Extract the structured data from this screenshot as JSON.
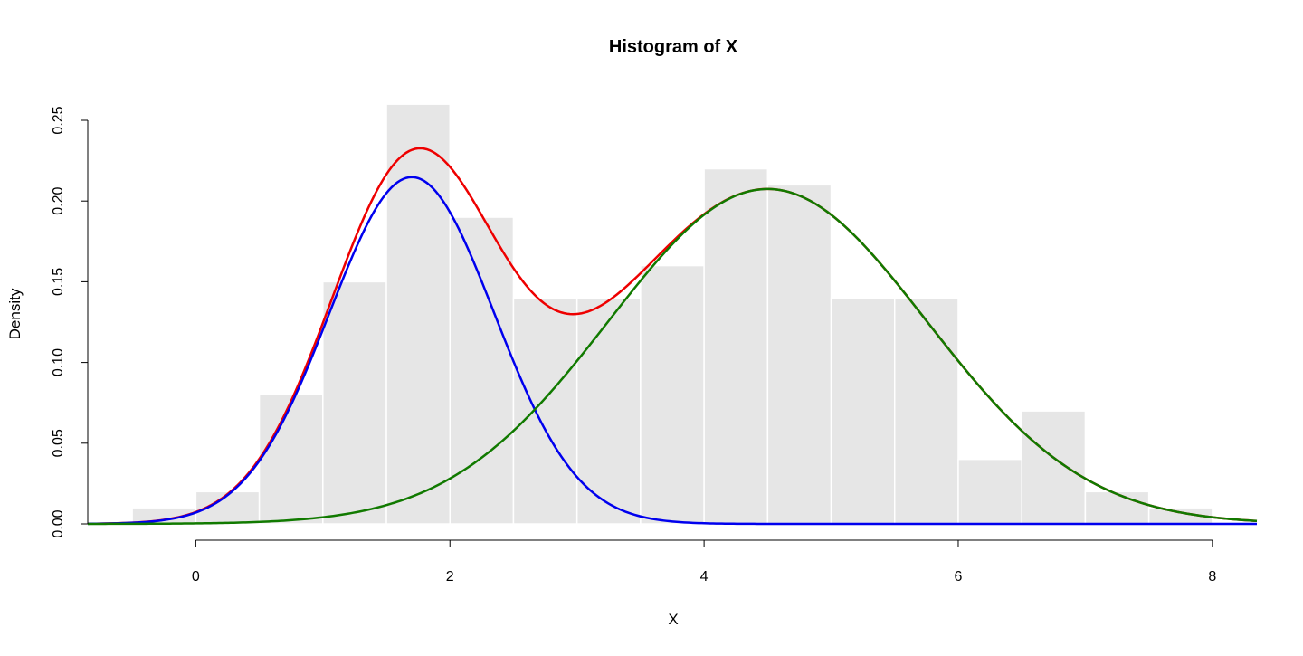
{
  "chart_data": {
    "type": "histogram",
    "title": "Histogram of X",
    "xlabel": "X",
    "ylabel": "Density",
    "xlim": [
      -0.85,
      8.35
    ],
    "ylim": [
      0,
      0.25
    ],
    "x_ticks": [
      0,
      2,
      4,
      6,
      8
    ],
    "x_tick_labels": [
      "0",
      "2",
      "4",
      "6",
      "8"
    ],
    "y_ticks": [
      0,
      0.05,
      0.1,
      0.15,
      0.2,
      0.25
    ],
    "y_tick_labels": [
      "0.00",
      "0.05",
      "0.10",
      "0.15",
      "0.20",
      "0.25"
    ],
    "bar_color": "#e6e6e6",
    "bars": [
      {
        "x0": -0.5,
        "x1": 0.0,
        "density": 0.01
      },
      {
        "x0": 0.0,
        "x1": 0.5,
        "density": 0.02
      },
      {
        "x0": 0.5,
        "x1": 1.0,
        "density": 0.08
      },
      {
        "x0": 1.0,
        "x1": 1.5,
        "density": 0.15
      },
      {
        "x0": 1.5,
        "x1": 2.0,
        "density": 0.26
      },
      {
        "x0": 2.0,
        "x1": 2.5,
        "density": 0.19
      },
      {
        "x0": 2.5,
        "x1": 3.0,
        "density": 0.14
      },
      {
        "x0": 3.0,
        "x1": 3.5,
        "density": 0.14
      },
      {
        "x0": 3.5,
        "x1": 4.0,
        "density": 0.16
      },
      {
        "x0": 4.0,
        "x1": 4.5,
        "density": 0.22
      },
      {
        "x0": 4.5,
        "x1": 5.0,
        "density": 0.21
      },
      {
        "x0": 5.0,
        "x1": 5.5,
        "density": 0.14
      },
      {
        "x0": 5.5,
        "x1": 6.0,
        "density": 0.14
      },
      {
        "x0": 6.0,
        "x1": 6.5,
        "density": 0.04
      },
      {
        "x0": 6.5,
        "x1": 7.0,
        "density": 0.07
      },
      {
        "x0": 7.0,
        "x1": 7.5,
        "density": 0.02
      },
      {
        "x0": 7.5,
        "x1": 8.0,
        "density": 0.01
      }
    ],
    "curves": [
      {
        "color": "#00ff00",
        "components": [
          {
            "weight": 0.35,
            "mean": 1.7,
            "sd": 0.65
          },
          {
            "weight": 0.65,
            "mean": 4.5,
            "sd": 1.25
          }
        ],
        "css_color": "#ee0000"
      },
      {
        "color": "#0000ee",
        "components": [
          {
            "weight": 0.35,
            "mean": 1.7,
            "sd": 0.65
          }
        ]
      },
      {
        "color": "#117a00",
        "components": [
          {
            "weight": 0.65,
            "mean": 4.5,
            "sd": 1.25
          }
        ]
      }
    ]
  }
}
